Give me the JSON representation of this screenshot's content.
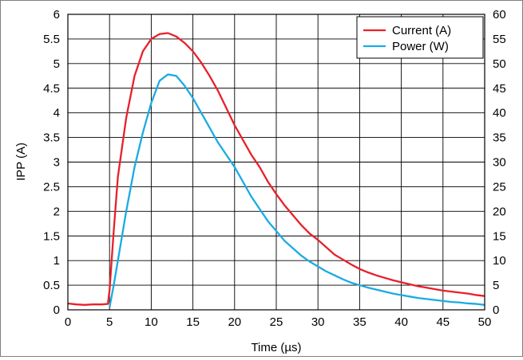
{
  "chart_data": {
    "type": "line",
    "xlabel": "Time (µs)",
    "ylabel": "IPP (A)",
    "xlim": [
      0,
      50
    ],
    "ylim": [
      0,
      6
    ],
    "y2lim": [
      0,
      60
    ],
    "x_ticks": [
      "0",
      "5",
      "10",
      "15",
      "20",
      "25",
      "30",
      "35",
      "40",
      "45",
      "50"
    ],
    "y_ticks": [
      "0",
      "0.5",
      "1",
      "1.5",
      "2",
      "2.5",
      "3",
      "3.5",
      "4",
      "4.5",
      "5",
      "5.5",
      "6"
    ],
    "y2_ticks": [
      "0",
      "5",
      "10",
      "15",
      "20",
      "25",
      "30",
      "35",
      "40",
      "45",
      "50",
      "55",
      "60"
    ],
    "grid": true,
    "legend_position": "top-right",
    "series": [
      {
        "name": "Current (A)",
        "axis": "left",
        "color": "#e8202a",
        "x": [
          0,
          1,
          2,
          3,
          4,
          4.8,
          5,
          5.5,
          6,
          7,
          8,
          9,
          10,
          11,
          12,
          13,
          14,
          15,
          16,
          17,
          18,
          19,
          20,
          21,
          22,
          23,
          24,
          25,
          26,
          27,
          28,
          29,
          30,
          31,
          32,
          33,
          34,
          35,
          36,
          37,
          38,
          39,
          40,
          41,
          42,
          43,
          44,
          45,
          46,
          47,
          48,
          49,
          50
        ],
        "y": [
          0.13,
          0.11,
          0.1,
          0.11,
          0.11,
          0.12,
          0.4,
          1.6,
          2.7,
          3.9,
          4.75,
          5.25,
          5.5,
          5.6,
          5.62,
          5.55,
          5.42,
          5.25,
          5.02,
          4.75,
          4.45,
          4.1,
          3.75,
          3.45,
          3.15,
          2.9,
          2.6,
          2.35,
          2.12,
          1.92,
          1.72,
          1.55,
          1.42,
          1.27,
          1.12,
          1.02,
          0.92,
          0.83,
          0.76,
          0.7,
          0.65,
          0.6,
          0.56,
          0.52,
          0.48,
          0.45,
          0.42,
          0.39,
          0.37,
          0.35,
          0.33,
          0.3,
          0.28
        ]
      },
      {
        "name": "Power (W)",
        "axis": "right",
        "color": "#1aabe3",
        "x": [
          5,
          5.5,
          6,
          7,
          8,
          9,
          10,
          11,
          12,
          13,
          14,
          15,
          16,
          17,
          18,
          19,
          20,
          21,
          22,
          23,
          24,
          25,
          26,
          27,
          28,
          29,
          30,
          31,
          32,
          33,
          34,
          35,
          36,
          37,
          38,
          39,
          40,
          41,
          42,
          43,
          44,
          45,
          46,
          47,
          48,
          49,
          50
        ],
        "y": [
          0.5,
          5,
          10,
          20,
          29,
          36,
          42,
          46.5,
          47.8,
          47.5,
          45.5,
          43,
          40,
          37,
          34,
          31.5,
          29,
          26,
          23,
          20.5,
          18,
          16,
          14,
          12.5,
          11,
          9.8,
          8.8,
          7.8,
          7,
          6.2,
          5.5,
          5,
          4.5,
          4.1,
          3.7,
          3.3,
          3,
          2.7,
          2.4,
          2.2,
          2,
          1.8,
          1.6,
          1.5,
          1.3,
          1.2,
          1
        ]
      }
    ]
  }
}
